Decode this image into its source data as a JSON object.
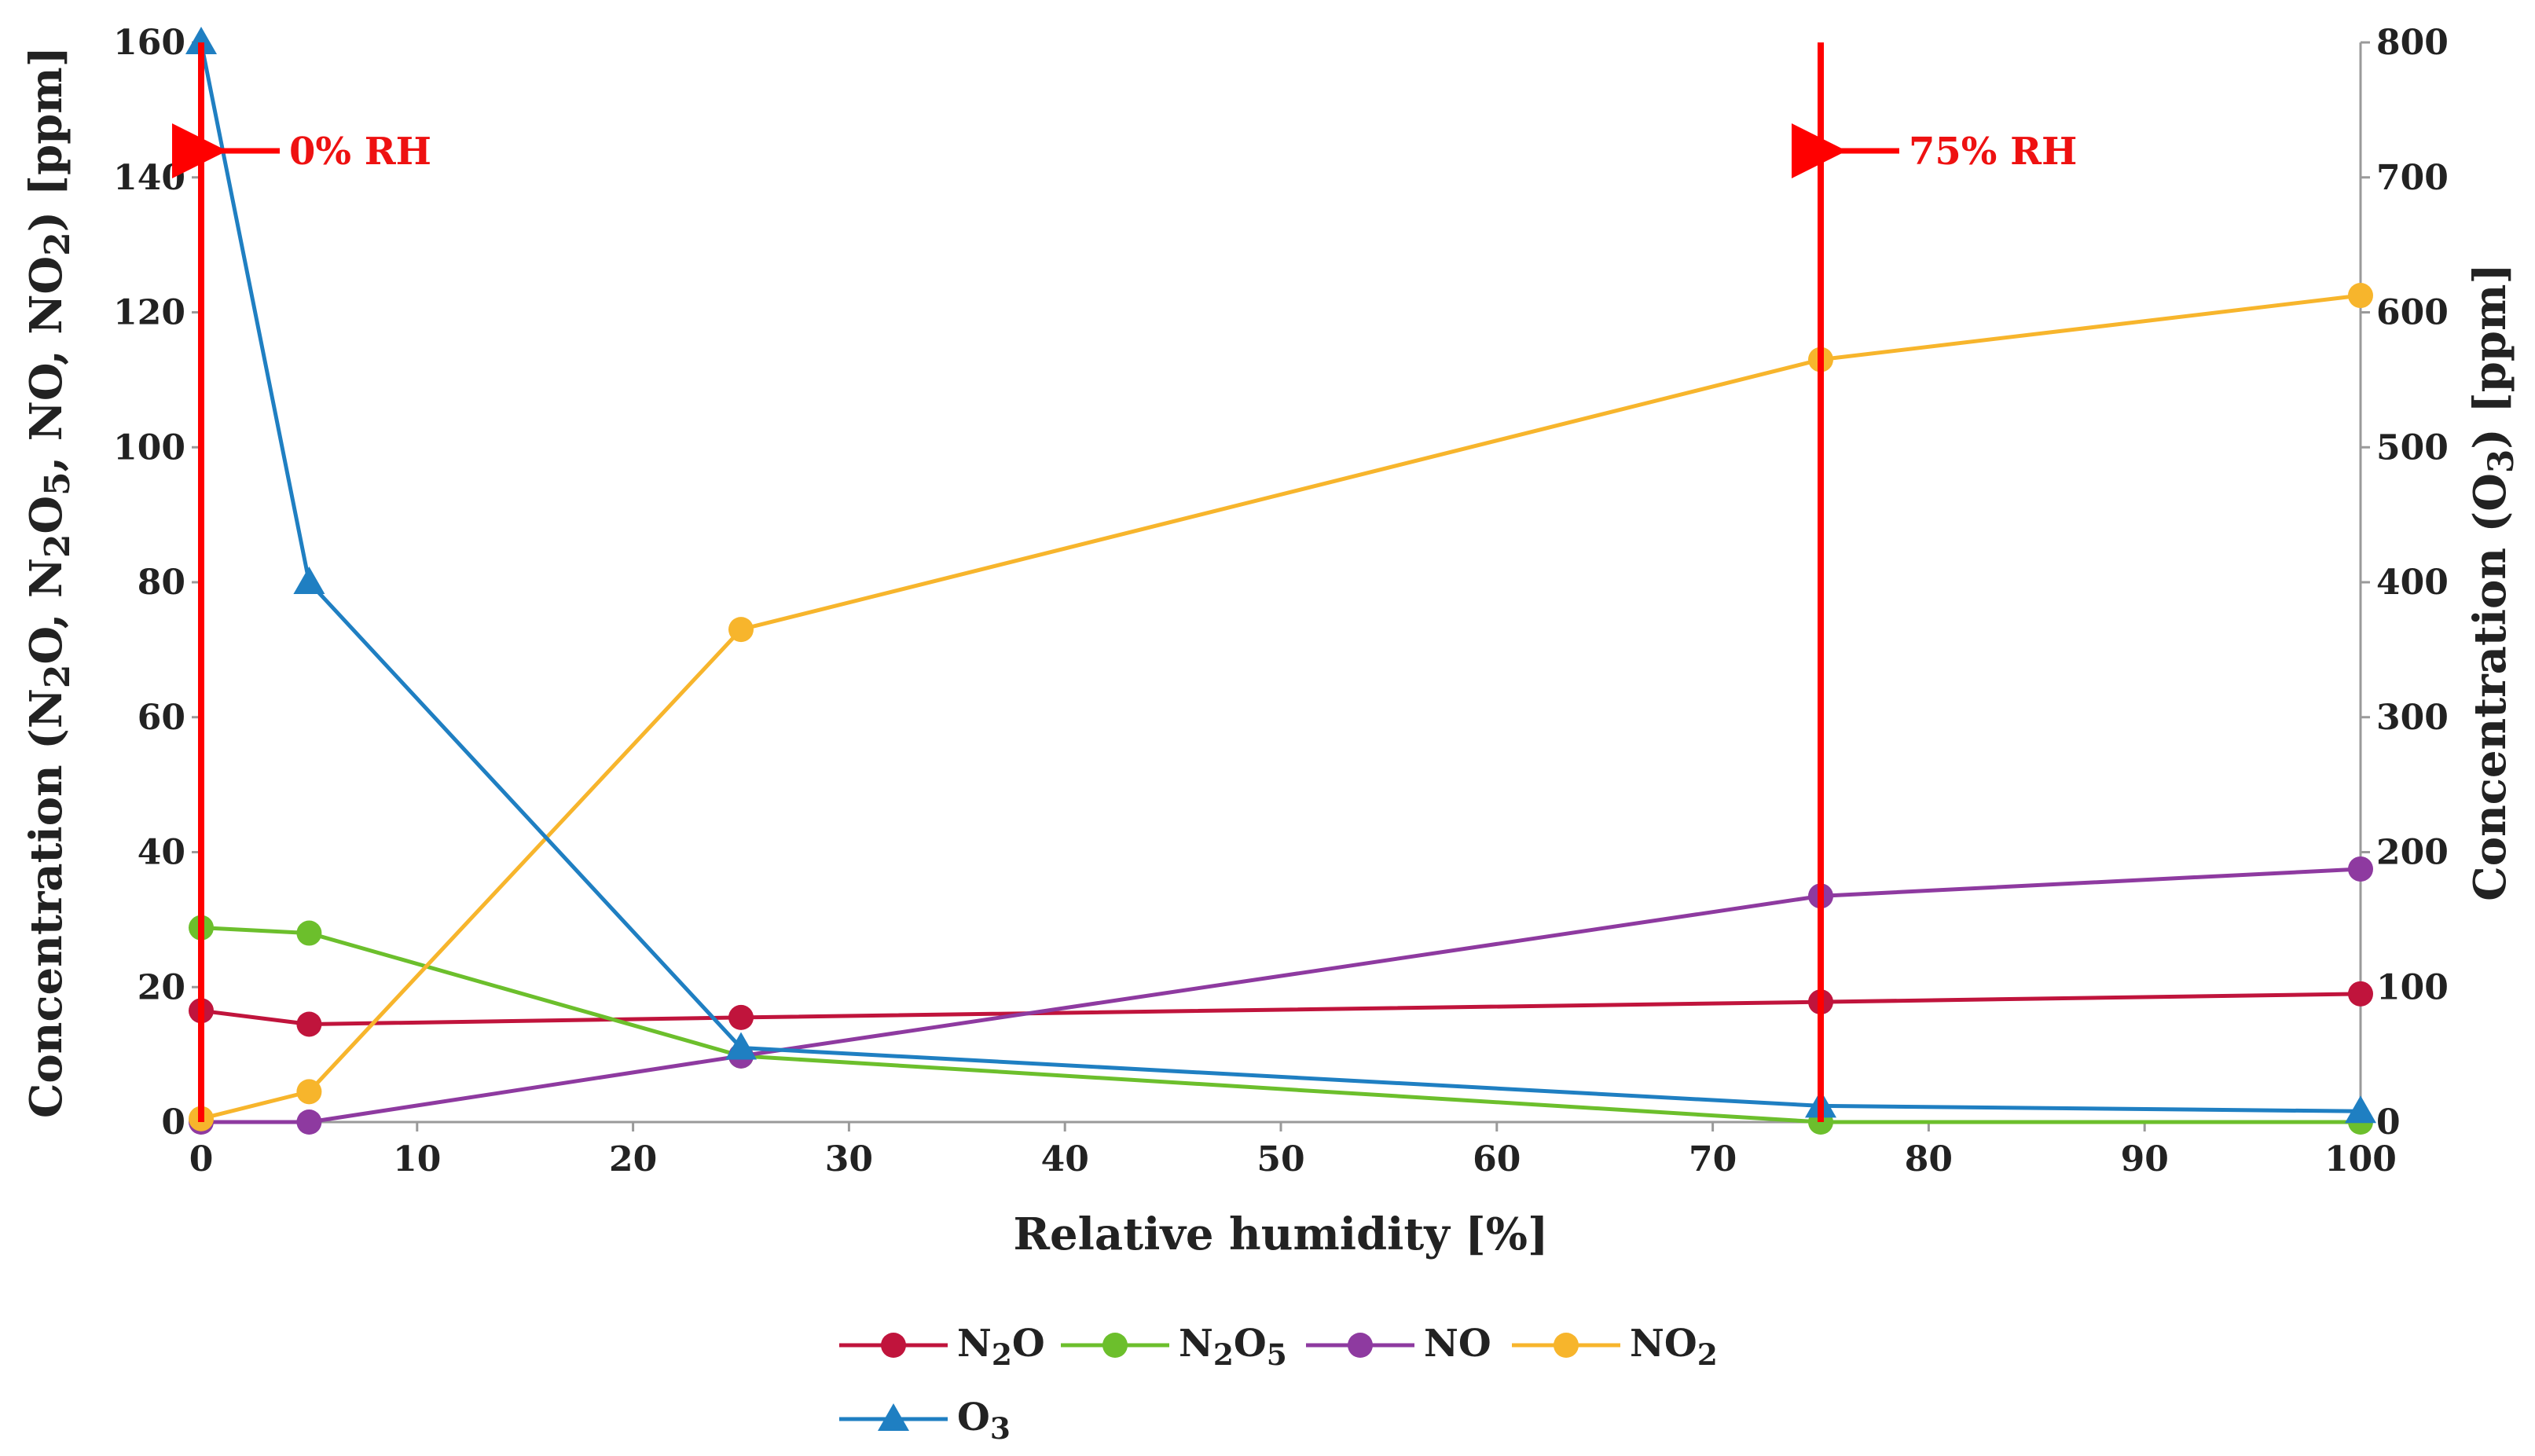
{
  "chart_data": {
    "type": "line",
    "title": "",
    "xlabel": "Relative humidity [%]",
    "ylabel_left": "Concentration (N₂O, N₂O₅, NO, NO₂) [ppm]",
    "ylabel_right": "Concentration (O₃) [ppm]",
    "xlim": [
      0,
      100
    ],
    "ylim_left": [
      0,
      160
    ],
    "ylim_right": [
      0,
      800
    ],
    "x_ticks": [
      "0",
      "10",
      "20",
      "30",
      "40",
      "50",
      "60",
      "70",
      "80",
      "90",
      "100"
    ],
    "y_left_ticks": [
      "0",
      "20",
      "40",
      "60",
      "80",
      "100",
      "120",
      "140",
      "160"
    ],
    "y_right_ticks": [
      "0",
      "100",
      "200",
      "300",
      "400",
      "500",
      "600",
      "700",
      "800"
    ],
    "grid": false,
    "x": [
      0,
      5,
      25,
      75,
      100
    ],
    "series": [
      {
        "name": "N₂O",
        "axis": "left",
        "marker": "circle",
        "color": "#c0143c",
        "values": [
          16.5,
          14.5,
          15.5,
          17.8,
          19.0
        ]
      },
      {
        "name": "N₂O₅",
        "axis": "left",
        "marker": "circle",
        "color": "#6cbf2c",
        "values": [
          28.8,
          28.0,
          9.8,
          0.0,
          0.0
        ]
      },
      {
        "name": "NO",
        "axis": "left",
        "marker": "circle",
        "color": "#8e3aa0",
        "values": [
          0.0,
          0.0,
          9.8,
          33.5,
          37.5
        ]
      },
      {
        "name": "NO₂",
        "axis": "left",
        "marker": "circle",
        "color": "#f7b52c",
        "values": [
          0.5,
          4.5,
          73.0,
          113.0,
          122.5
        ]
      },
      {
        "name": "O₃",
        "axis": "right",
        "marker": "triangle",
        "color": "#1f7fc2",
        "values": [
          800,
          400,
          55,
          12,
          8
        ]
      }
    ],
    "annotations": [
      {
        "x": 0,
        "label": "0% RH",
        "color": "#ff0000"
      },
      {
        "x": 75,
        "label": "75% RH",
        "color": "#ff0000"
      }
    ],
    "legend_position": "bottom-center"
  }
}
